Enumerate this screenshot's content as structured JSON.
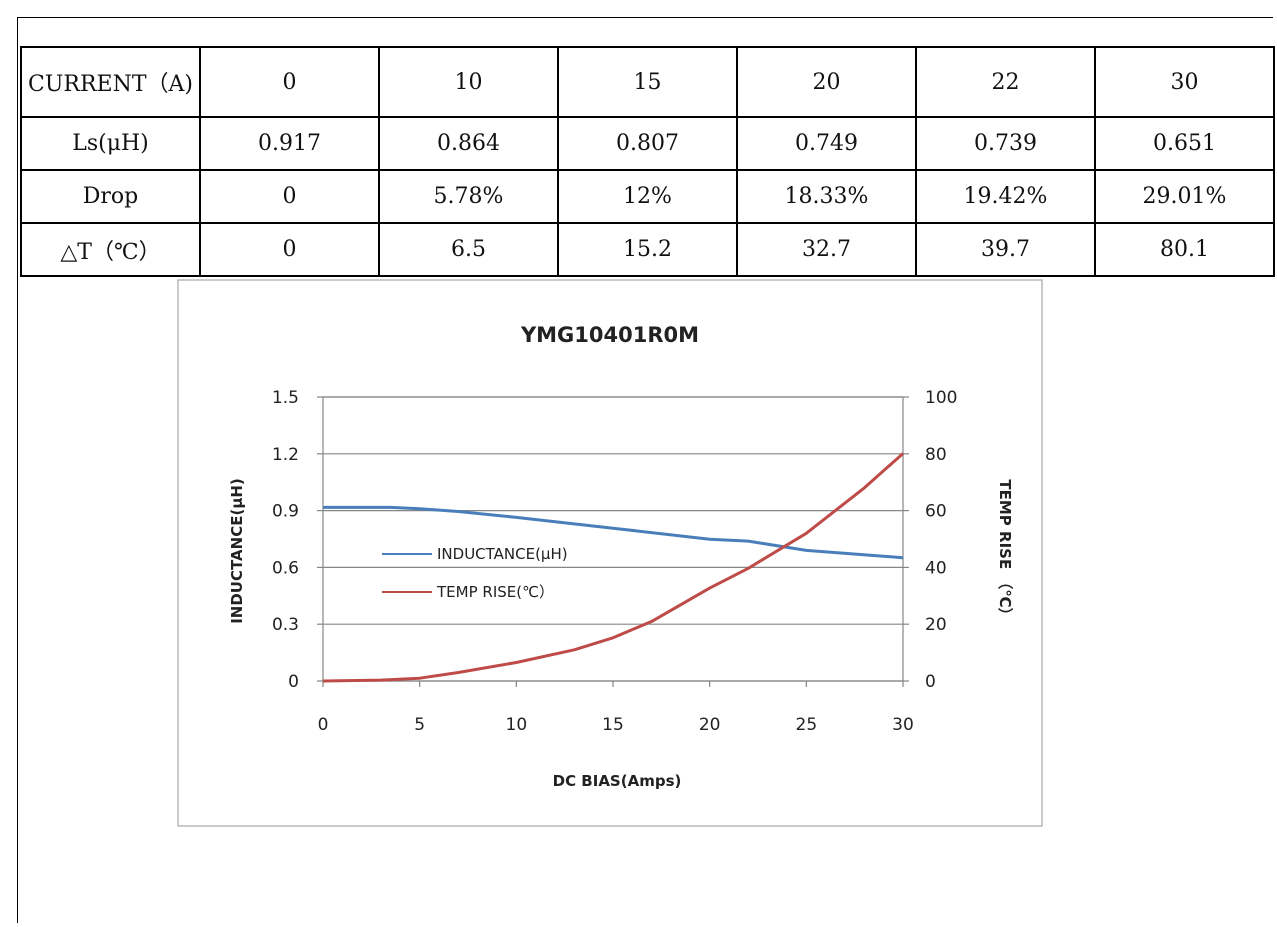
{
  "table": {
    "rows": [
      [
        "CURRENT（A)",
        "0",
        "10",
        "15",
        "20",
        "22",
        "30"
      ],
      [
        "Ls(μH)",
        "0.917",
        "0.864",
        "0.807",
        "0.749",
        "0.739",
        "0.651"
      ],
      [
        "Drop",
        "0",
        "5.78%",
        "12%",
        "18.33%",
        "19.42%",
        "29.01%"
      ],
      [
        "△T（℃）",
        "0",
        "6.5",
        "15.2",
        "32.7",
        "39.7",
        "80.1"
      ]
    ]
  },
  "chart_data": {
    "type": "line",
    "title": "YMG10401R0M",
    "xlabel": "DC BIAS(Amps)",
    "ylabel": "INDUCTANCE(μH)",
    "y2label": "TEMP RISE （℃）",
    "xlim": [
      0,
      30
    ],
    "ylim": [
      0,
      1.5
    ],
    "y2lim": [
      0,
      100
    ],
    "xticks": [
      "0",
      "5",
      "10",
      "15",
      "20",
      "25",
      "30"
    ],
    "yticks": [
      "0",
      "0.3",
      "0.6",
      "0.9",
      "1.2",
      "1.5"
    ],
    "y2ticks": [
      "0",
      "20",
      "40",
      "60",
      "80",
      "100"
    ],
    "grid": true,
    "legend_position": "left-middle",
    "series": [
      {
        "name": "INDUCTANCE(μH)",
        "axis": "left",
        "color": "#4a7ebb",
        "x": [
          0,
          3.5,
          5,
          7,
          10,
          15,
          20,
          22,
          25,
          30
        ],
        "y": [
          0.917,
          0.917,
          0.91,
          0.895,
          0.864,
          0.807,
          0.749,
          0.739,
          0.69,
          0.651
        ]
      },
      {
        "name": "TEMP RISE(℃）",
        "axis": "right",
        "color": "#be4b48",
        "x": [
          0,
          3,
          5,
          7,
          10,
          13,
          15,
          17,
          20,
          22,
          25,
          28,
          30
        ],
        "y": [
          0,
          0.3,
          1,
          3,
          6.5,
          11,
          15.2,
          21,
          32.7,
          39.7,
          52,
          68,
          80.1
        ]
      }
    ]
  }
}
